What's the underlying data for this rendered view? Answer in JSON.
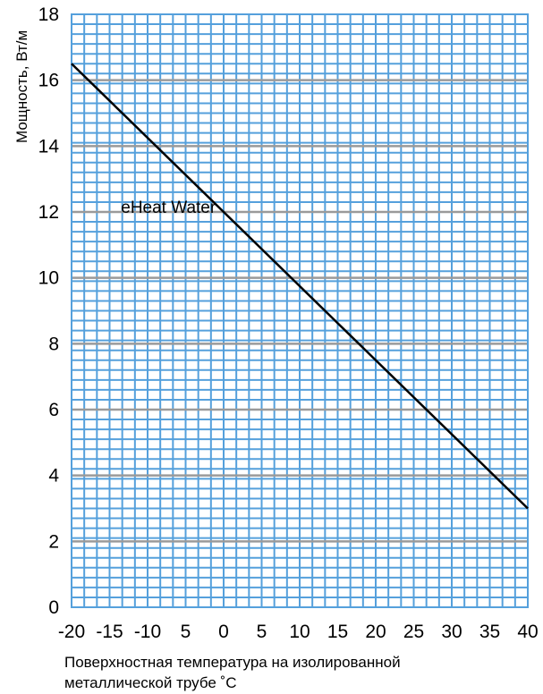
{
  "chart_data": {
    "type": "line",
    "title": "",
    "xlabel_lines": [
      "Поверхностная температура на изолированной",
      "металлической трубе ˚C"
    ],
    "ylabel": "Мощность, Вт/м",
    "xlim": [
      -20,
      40
    ],
    "ylim": [
      0,
      18
    ],
    "x_tick_labels": [
      "-20",
      "-15",
      "-10",
      "5",
      "0",
      "5",
      "10",
      "15",
      "20",
      "25",
      "30",
      "35",
      "40"
    ],
    "y_ticks": [
      0,
      2,
      4,
      6,
      8,
      10,
      12,
      14,
      16,
      18
    ],
    "grid": true,
    "colors": {
      "background": "#ffffff",
      "minor_grid": "#55a0dc",
      "major_grid": "#9a9a9a",
      "plot_border": "#55a0dc",
      "line": "#000000"
    },
    "series": [
      {
        "name": "eHeat Water",
        "x": [
          -20,
          40
        ],
        "y": [
          16.5,
          3.0
        ]
      }
    ],
    "annotations": [
      {
        "text": "eHeat Water",
        "x": -13.5,
        "y": 12.0
      }
    ]
  }
}
